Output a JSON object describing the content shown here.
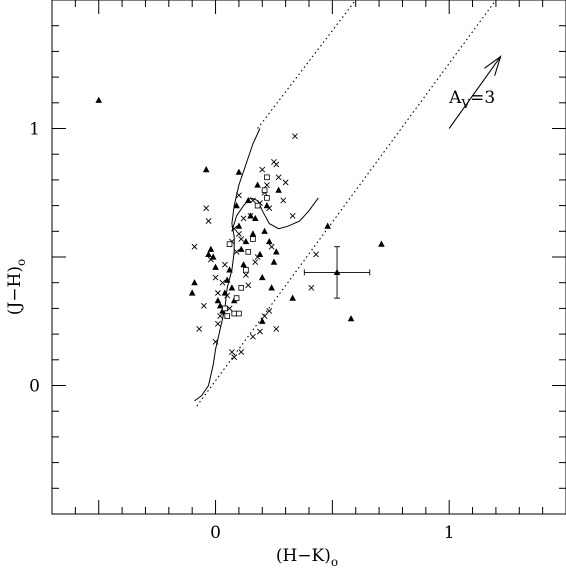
{
  "chart_data": {
    "type": "scatter",
    "title": "",
    "xlabel": "(H−K)",
    "xlabel_sub": "o",
    "ylabel": "(J−H)",
    "ylabel_sub": "o",
    "xlim": [
      -0.7,
      1.5
    ],
    "ylim": [
      -0.5,
      1.5
    ],
    "x_ticks": [
      0,
      1
    ],
    "x_tick_labels": [
      "0",
      "1"
    ],
    "y_ticks": [
      0,
      1
    ],
    "y_tick_labels": [
      "0",
      "1"
    ],
    "x_minor_step": 0.1,
    "y_minor_step": 0.1,
    "grid": false,
    "series": [
      {
        "marker": "filled-triangle",
        "points": [
          [
            -0.5,
            1.11
          ],
          [
            -0.09,
            0.4
          ],
          [
            -0.1,
            0.36
          ],
          [
            -0.04,
            0.84
          ],
          [
            -0.03,
            0.51
          ],
          [
            -0.02,
            0.53
          ],
          [
            -0.01,
            0.5
          ],
          [
            0,
            0.46
          ],
          [
            0.01,
            0.33
          ],
          [
            0.02,
            0.31
          ],
          [
            0.03,
            0.29
          ],
          [
            0.04,
            0.36
          ],
          [
            0.05,
            0.41
          ],
          [
            0.06,
            0.45
          ],
          [
            0.07,
            0.38
          ],
          [
            0.08,
            0.33
          ],
          [
            0.09,
            0.7
          ],
          [
            0.1,
            0.83
          ],
          [
            0.1,
            0.62
          ],
          [
            0.11,
            0.53
          ],
          [
            0.12,
            0.47
          ],
          [
            0.13,
            0.56
          ],
          [
            0.14,
            0.72
          ],
          [
            0.15,
            0.66
          ],
          [
            0.16,
            0.59
          ],
          [
            0.17,
            0.65
          ],
          [
            0.18,
            0.78
          ],
          [
            0.19,
            0.51
          ],
          [
            0.2,
            0.42
          ],
          [
            0.21,
            0.6
          ],
          [
            0.22,
            0.7
          ],
          [
            0.23,
            0.56
          ],
          [
            0.24,
            0.38
          ],
          [
            0.25,
            0.48
          ],
          [
            0.26,
            0.52
          ],
          [
            0.27,
            0.76
          ],
          [
            0.2,
            0.25
          ],
          [
            0.33,
            0.34
          ],
          [
            0.48,
            0.62
          ],
          [
            0.58,
            0.26
          ],
          [
            0.71,
            0.55
          ]
        ]
      },
      {
        "marker": "cross",
        "points": [
          [
            -0.09,
            0.54
          ],
          [
            -0.04,
            0.69
          ],
          [
            -0.03,
            0.64
          ],
          [
            -0.02,
            0.49
          ],
          [
            0,
            0.42
          ],
          [
            0.01,
            0.36
          ],
          [
            0.01,
            0.24
          ],
          [
            0.02,
            0.27
          ],
          [
            0.03,
            0.4
          ],
          [
            0.04,
            0.47
          ],
          [
            0.05,
            0.35
          ],
          [
            0.06,
            0.3
          ],
          [
            0.07,
            0.56
          ],
          [
            0.08,
            0.61
          ],
          [
            0.09,
            0.52
          ],
          [
            0.1,
            0.74
          ],
          [
            0.1,
            0.59
          ],
          [
            0.11,
            0.57
          ],
          [
            0.12,
            0.65
          ],
          [
            0.13,
            0.43
          ],
          [
            0.14,
            0.39
          ],
          [
            0.15,
            0.66
          ],
          [
            0.16,
            0.72
          ],
          [
            0.17,
            0.48
          ],
          [
            0.18,
            0.5
          ],
          [
            0.19,
            0.71
          ],
          [
            0.2,
            0.84
          ],
          [
            0.21,
            0.75
          ],
          [
            0.22,
            0.78
          ],
          [
            0.23,
            0.69
          ],
          [
            0.24,
            0.54
          ],
          [
            0.25,
            0.87
          ],
          [
            0.26,
            0.86
          ],
          [
            0.27,
            0.81
          ],
          [
            0.29,
            0.72
          ],
          [
            0.3,
            0.79
          ],
          [
            0.33,
            0.66
          ],
          [
            0.34,
            0.97
          ],
          [
            -0.05,
            0.31
          ],
          [
            0.0,
            0.17
          ],
          [
            -0.07,
            0.22
          ],
          [
            0.07,
            0.13
          ],
          [
            0.08,
            0.11
          ],
          [
            0.11,
            0.13
          ],
          [
            0.16,
            0.19
          ],
          [
            0.19,
            0.21
          ],
          [
            0.21,
            0.27
          ],
          [
            0.23,
            0.29
          ],
          [
            0.26,
            0.22
          ],
          [
            0.41,
            0.38
          ],
          [
            0.43,
            0.51
          ]
        ]
      },
      {
        "marker": "open-square",
        "points": [
          [
            0.04,
            0.3
          ],
          [
            0.05,
            0.27
          ],
          [
            0.08,
            0.28
          ],
          [
            0.1,
            0.28
          ],
          [
            0.13,
            0.45
          ],
          [
            0.14,
            0.52
          ],
          [
            0.16,
            0.57
          ],
          [
            0.18,
            0.7
          ],
          [
            0.21,
            0.76
          ],
          [
            0.22,
            0.73
          ],
          [
            0.22,
            0.81
          ],
          [
            0.06,
            0.55
          ],
          [
            0.09,
            0.34
          ],
          [
            0.11,
            0.38
          ]
        ]
      }
    ],
    "error_bar_point": {
      "x": 0.52,
      "y": 0.44,
      "x_err": 0.14,
      "y_err": 0.1
    },
    "dwarf_locus": [
      [
        -0.09,
        -0.06
      ],
      [
        -0.06,
        -0.04
      ],
      [
        -0.03,
        0.0
      ],
      [
        -0.01,
        0.08
      ],
      [
        0.0,
        0.14
      ],
      [
        0.02,
        0.22
      ],
      [
        0.04,
        0.3
      ],
      [
        0.05,
        0.38
      ],
      [
        0.07,
        0.45
      ],
      [
        0.08,
        0.52
      ],
      [
        0.08,
        0.58
      ],
      [
        0.07,
        0.63
      ],
      [
        0.08,
        0.7
      ],
      [
        0.1,
        0.78
      ],
      [
        0.13,
        0.86
      ],
      [
        0.16,
        0.94
      ],
      [
        0.19,
        1.0
      ]
    ],
    "giant_branch": [
      [
        0.07,
        0.6
      ],
      [
        0.09,
        0.66
      ],
      [
        0.12,
        0.7
      ],
      [
        0.15,
        0.73
      ],
      [
        0.18,
        0.72
      ],
      [
        0.2,
        0.68
      ],
      [
        0.23,
        0.63
      ],
      [
        0.27,
        0.61
      ],
      [
        0.31,
        0.62
      ],
      [
        0.36,
        0.64
      ],
      [
        0.4,
        0.68
      ],
      [
        0.44,
        0.73
      ]
    ],
    "reddening_band": {
      "upper": [
        [
          0.18,
          1.0
        ],
        [
          0.6,
          1.5
        ]
      ],
      "lower": [
        [
          -0.08,
          -0.08
        ],
        [
          1.2,
          1.5
        ]
      ]
    },
    "reddening_arrow": {
      "from": [
        1.0,
        1.0
      ],
      "to": [
        1.22,
        1.28
      ],
      "label": "A",
      "label_sub": "V",
      "label_suffix": "=3"
    }
  }
}
